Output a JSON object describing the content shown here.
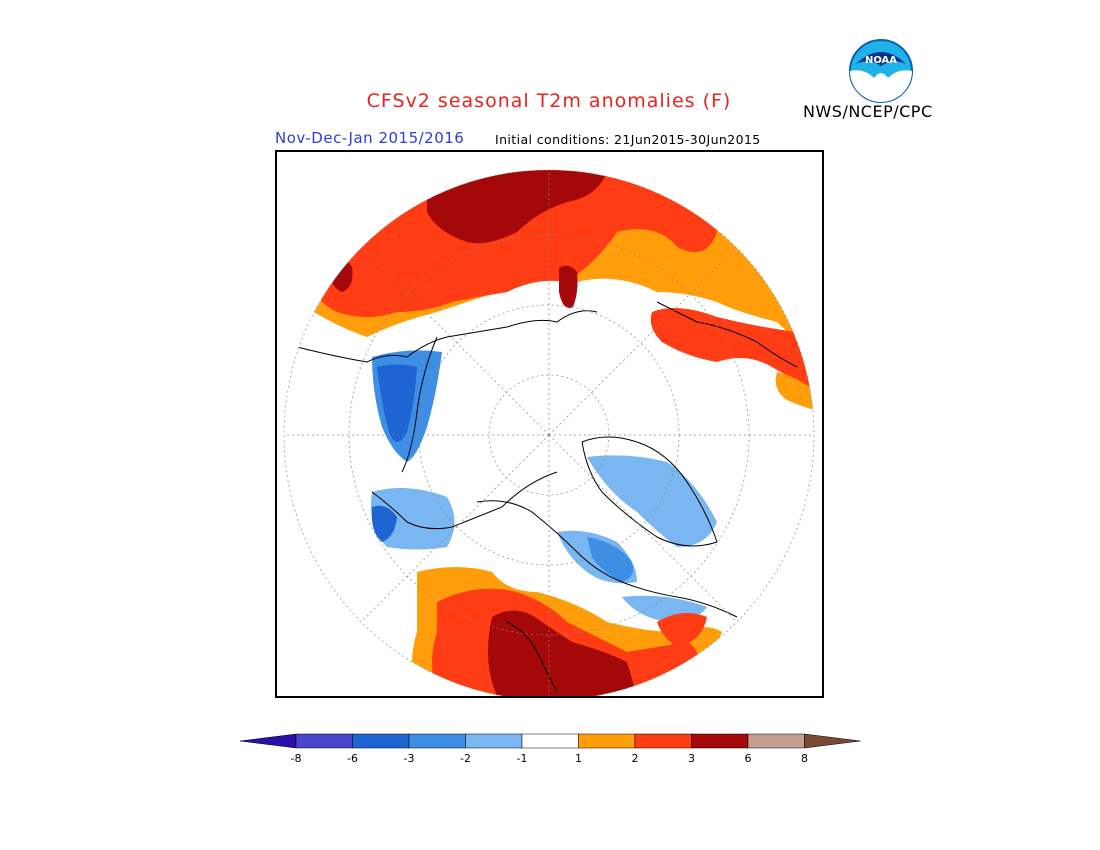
{
  "title": "CFSv2 seasonal T2m anomalies (F)",
  "period": "Nov-Dec-Jan 2015/2016",
  "initial_conditions": "Initial conditions: 21Jun2015-30Jun2015",
  "agency": "NWS/NCEP/CPC",
  "logo_text": "NOAA",
  "colors": {
    "title": "#e8231e",
    "period": "#2b3fd8",
    "very_cold": "#2a0fa8",
    "cold3": "#4a44cc",
    "cold2": "#1e64d2",
    "cold1": "#3d8fe6",
    "cool": "#7ab6f2",
    "neutral": "#ffffff",
    "warm1": "#ff9e0a",
    "warm2": "#ff3c14",
    "warm3": "#a40808",
    "hot": "#c49e90",
    "very_hot": "#7a4a35"
  },
  "legend": {
    "ticks": [
      "-8",
      "-6",
      "-3",
      "-2",
      "-1",
      "1",
      "2",
      "3",
      "6",
      "8"
    ],
    "bins": [
      {
        "name": "below -8",
        "color": "#2a0fa8"
      },
      {
        "name": "-8 to -6",
        "color": "#4a44cc"
      },
      {
        "name": "-6 to -3",
        "color": "#1e64d2"
      },
      {
        "name": "-3 to -2",
        "color": "#3d8fe6"
      },
      {
        "name": "-2 to -1",
        "color": "#7ab6f2"
      },
      {
        "name": "-1 to 1",
        "color": "#ffffff"
      },
      {
        "name": "1 to 2",
        "color": "#ff9e0a"
      },
      {
        "name": "2 to 3",
        "color": "#ff3c14"
      },
      {
        "name": "3 to 6",
        "color": "#a40808"
      },
      {
        "name": "6 to 8",
        "color": "#c49e90"
      },
      {
        "name": "above 8",
        "color": "#7a4a35"
      }
    ]
  }
}
